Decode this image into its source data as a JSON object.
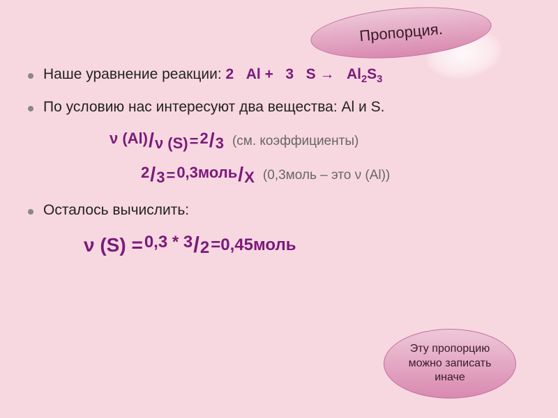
{
  "badge_top": "Пропорция.",
  "badge_bottom": "Эту пропорцию можно записать иначе",
  "bullets": {
    "line1_prefix": "Наше уравнение реакции: ",
    "line2": "По условию нас интересуют два вещества: Al и S.",
    "line3": "Осталось вычислить:"
  },
  "equation": {
    "coef1": "2",
    "el1": "Al",
    "plus": " + ",
    "coef2": "3",
    "el2": "S",
    "arrow": " → ",
    "prod_el": "Al",
    "prod_sub1": "2",
    "prod_el2": "S",
    "prod_sub2": "3"
  },
  "frac1": {
    "num": "ν (Al)",
    "den": "ν (S)",
    "eq": " = ",
    "num2": "2",
    "den2": "3",
    "note": "(см. коэффициенты)"
  },
  "frac2": {
    "num": "2",
    "den": "3",
    "eq": " = ",
    "num2": "0,3моль",
    "den2": "Х",
    "note": "(0,3моль – это ν (Al))"
  },
  "result": {
    "lhs": "ν (S) = ",
    "num": "0,3 * 3",
    "den": "2",
    "rhs": " =0,45моль"
  },
  "colors": {
    "bg": "#f8d8e0",
    "purple": "#7a1a7a",
    "text": "#222222",
    "note": "#666666",
    "badge_top": "#eec8d8",
    "badge_bot": "#d989b0",
    "badge_border": "#c070a0"
  }
}
